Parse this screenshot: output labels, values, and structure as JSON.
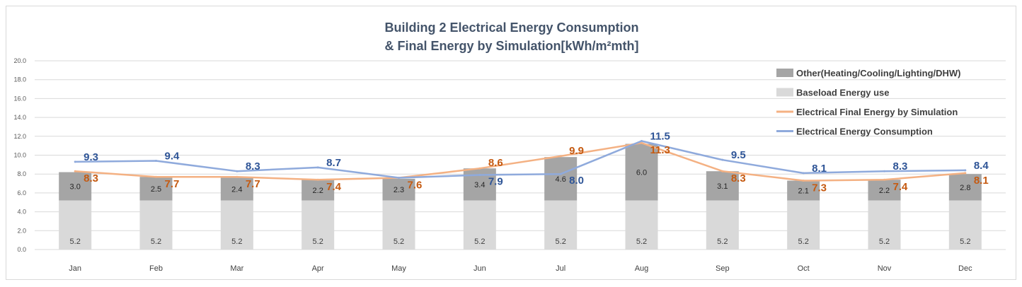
{
  "chart_data": {
    "type": "bar",
    "title_line1": "Building 2 Electrical Energy Consumption",
    "title_line2": "& Final Energy by Simulation[kWh/m²mth]",
    "ylim": [
      0,
      20
    ],
    "yticks": [
      "0.0",
      "2.0",
      "4.0",
      "6.0",
      "8.0",
      "10.0",
      "12.0",
      "14.0",
      "16.0",
      "18.0",
      "20.0"
    ],
    "categories": [
      "Jan",
      "Feb",
      "Mar",
      "Apr",
      "May",
      "Jun",
      "Jul",
      "Aug",
      "Sep",
      "Oct",
      "Nov",
      "Dec"
    ],
    "series": [
      {
        "name": "Baseload Energy use",
        "kind": "stacked-bar",
        "values": [
          5.2,
          5.2,
          5.2,
          5.2,
          5.2,
          5.2,
          5.2,
          5.2,
          5.2,
          5.2,
          5.2,
          5.2
        ],
        "labels": [
          "5.2",
          "5.2",
          "5.2",
          "5.2",
          "5.2",
          "5.2",
          "5.2",
          "5.2",
          "5.2",
          "5.2",
          "5.2",
          "5.2"
        ]
      },
      {
        "name": "Other(Heating/Cooling/Lighting/DHW)",
        "kind": "stacked-bar",
        "values": [
          3.0,
          2.5,
          2.4,
          2.2,
          2.3,
          3.4,
          4.6,
          6.0,
          3.1,
          2.1,
          2.2,
          2.8
        ],
        "labels": [
          "3.0",
          "2.5",
          "2.4",
          "2.2",
          "2.3",
          "3.4",
          "4.6",
          "6.0",
          "3.1",
          "2.1",
          "2.2",
          "2.8"
        ]
      },
      {
        "name": "Electrical Final Energy by Simulation",
        "kind": "line",
        "values": [
          8.3,
          7.7,
          7.7,
          7.4,
          7.6,
          8.6,
          9.9,
          11.3,
          8.3,
          7.3,
          7.4,
          8.1
        ],
        "labels": [
          "8.3",
          "7.7",
          "7.7",
          "7.4",
          "7.6",
          "8.6",
          "9.9",
          "11.3",
          "8.3",
          "7.3",
          "7.4",
          "8.1"
        ]
      },
      {
        "name": "Electrical Energy Consumption",
        "kind": "line",
        "values": [
          9.3,
          9.4,
          8.3,
          8.7,
          7.6,
          7.9,
          8.0,
          11.5,
          9.5,
          8.1,
          8.3,
          8.4
        ],
        "labels": [
          "9.3",
          "9.4",
          "8.3",
          "8.7",
          "",
          "7.9",
          "8.0",
          "11.5",
          "9.5",
          "8.1",
          "8.3",
          "8.4"
        ]
      }
    ],
    "legend": [
      "Other(Heating/Cooling/Lighting/DHW)",
      "Baseload Energy use",
      "Electrical Final Energy by Simulation",
      "Electrical Energy Consumption"
    ],
    "legend_position": "top-right",
    "grid": true
  },
  "colors": {
    "baseload": "#d9d9d9",
    "other": "#a5a5a5",
    "simulation": "#f4b183",
    "consumption": "#8faadc",
    "sim_label": "#c55a11",
    "cons_label": "#2f5597",
    "grid": "#d9d9d9"
  }
}
